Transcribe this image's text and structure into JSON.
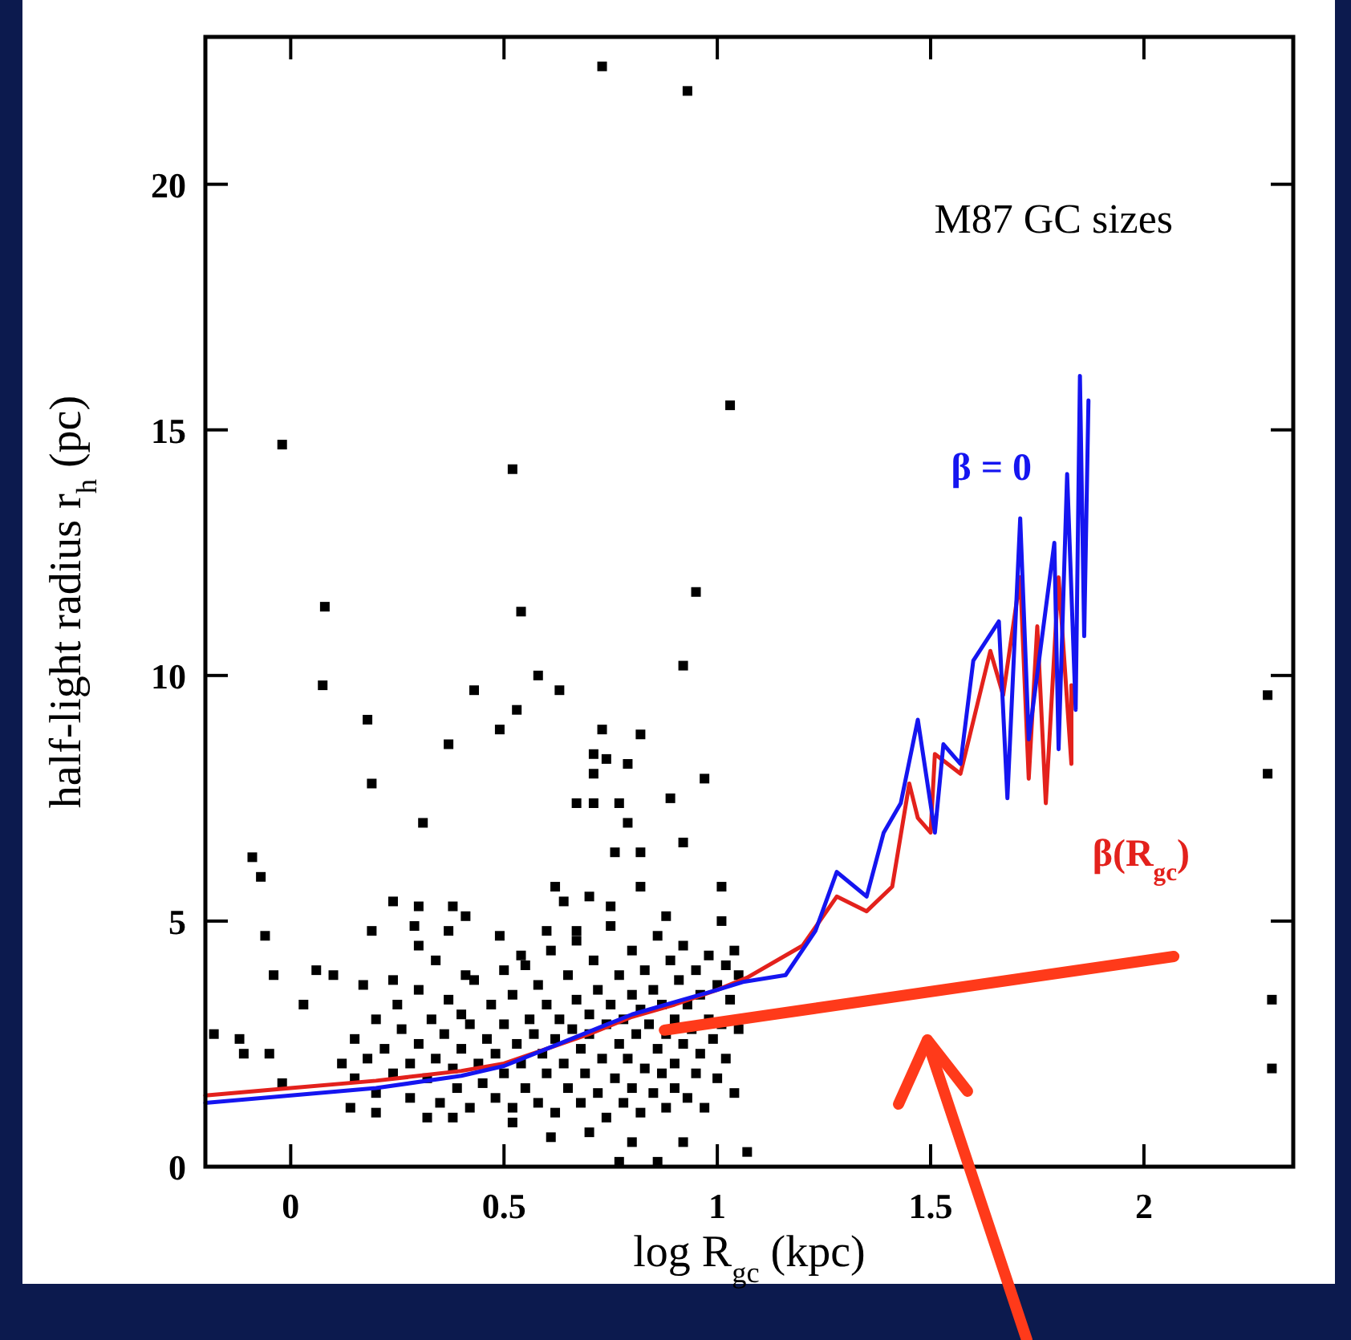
{
  "chart_data": {
    "type": "scatter",
    "title": "M87 GC sizes",
    "xlabel": "log R$_{gc}$ (kpc)",
    "ylabel": "half-light radius r$_{h}$ (pc)",
    "xlim": [
      -0.2,
      2.35
    ],
    "ylim": [
      0,
      23
    ],
    "xticks": [
      0,
      0.5,
      1,
      1.5,
      2
    ],
    "yticks": [
      0,
      5,
      10,
      15,
      20
    ],
    "grid": false,
    "marker": "square",
    "series": [
      {
        "color": "#000000",
        "x": [
          0.73,
          0.93,
          1.03,
          -0.02,
          0.52,
          0.08,
          0.54,
          0.95,
          2.29,
          2.29,
          2.3,
          2.3,
          0.075,
          0.18,
          0.19,
          0.37,
          0.31,
          0.43,
          0.49,
          0.53,
          0.58,
          0.63,
          0.92,
          0.73,
          0.82,
          0.71,
          0.74,
          0.79,
          0.71,
          0.97,
          0.67,
          0.71,
          0.77,
          0.89,
          0.79,
          0.76,
          0.82,
          0.92,
          -0.09,
          -0.07,
          -0.06,
          -0.04,
          0.06,
          0.03,
          -0.18,
          -0.12,
          -0.11,
          -0.05,
          -0.02,
          0.14,
          0.2,
          0.32,
          0.38,
          0.52,
          0.61,
          0.7,
          0.8,
          0.77,
          0.86,
          0.92,
          1.07,
          0.24,
          0.3,
          0.38,
          0.41,
          0.19,
          0.29,
          0.37,
          0.3,
          0.49,
          0.62,
          0.64,
          0.7,
          0.75,
          0.82,
          0.88,
          1.01,
          1.01,
          0.1,
          0.17,
          0.24,
          0.34,
          0.41,
          0.54,
          0.6,
          0.67,
          1.04,
          0.12,
          0.15,
          0.15,
          0.18,
          0.2,
          0.2,
          0.22,
          0.24,
          0.25,
          0.26,
          0.28,
          0.28,
          0.3,
          0.3,
          0.32,
          0.33,
          0.34,
          0.35,
          0.36,
          0.37,
          0.38,
          0.39,
          0.4,
          0.4,
          0.42,
          0.42,
          0.43,
          0.44,
          0.45,
          0.46,
          0.47,
          0.48,
          0.48,
          0.5,
          0.5,
          0.5,
          0.52,
          0.52,
          0.53,
          0.54,
          0.55,
          0.55,
          0.56,
          0.57,
          0.58,
          0.58,
          0.59,
          0.6,
          0.6,
          0.61,
          0.62,
          0.62,
          0.63,
          0.64,
          0.65,
          0.65,
          0.66,
          0.67,
          0.67,
          0.68,
          0.68,
          0.69,
          0.7,
          0.7,
          0.71,
          0.72,
          0.72,
          0.73,
          0.74,
          0.74,
          0.75,
          0.75,
          0.76,
          0.77,
          0.77,
          0.78,
          0.78,
          0.79,
          0.8,
          0.8,
          0.8,
          0.81,
          0.82,
          0.82,
          0.83,
          0.83,
          0.84,
          0.85,
          0.85,
          0.86,
          0.86,
          0.87,
          0.87,
          0.88,
          0.88,
          0.89,
          0.9,
          0.9,
          0.9,
          0.91,
          0.92,
          0.92,
          0.93,
          0.93,
          0.94,
          0.95,
          0.95,
          0.96,
          0.96,
          0.97,
          0.98,
          0.98,
          0.99,
          1.0,
          1.0,
          1.01,
          1.02,
          1.02,
          1.03,
          1.04,
          1.05,
          1.05
        ],
        "values": [
          22.4,
          21.9,
          15.5,
          14.7,
          14.2,
          11.4,
          11.3,
          11.7,
          9.6,
          8.0,
          3.4,
          2.0,
          9.8,
          9.1,
          7.8,
          8.6,
          7.0,
          9.7,
          8.9,
          9.3,
          10.0,
          9.7,
          10.2,
          8.9,
          8.8,
          8.4,
          8.3,
          8.2,
          8.0,
          7.9,
          7.4,
          7.4,
          7.4,
          7.5,
          7.0,
          6.4,
          6.4,
          6.6,
          6.3,
          5.9,
          4.7,
          3.9,
          4.0,
          3.3,
          2.7,
          2.6,
          2.3,
          2.3,
          1.7,
          1.2,
          1.1,
          1.0,
          1.0,
          0.9,
          0.6,
          0.7,
          0.5,
          0.1,
          0.1,
          0.5,
          0.3,
          5.4,
          5.3,
          5.3,
          5.1,
          4.8,
          4.9,
          4.8,
          4.5,
          4.7,
          5.7,
          5.4,
          5.5,
          5.3,
          5.7,
          5.1,
          5.7,
          5.0,
          3.9,
          3.7,
          3.8,
          4.2,
          3.9,
          4.3,
          4.8,
          4.8,
          4.4,
          2.1,
          1.8,
          2.6,
          2.2,
          3.0,
          1.5,
          2.4,
          1.9,
          3.3,
          2.8,
          2.1,
          1.4,
          3.6,
          2.5,
          1.8,
          3.0,
          2.2,
          1.3,
          2.7,
          3.4,
          2.0,
          1.6,
          3.1,
          2.4,
          1.2,
          2.9,
          3.8,
          2.1,
          1.7,
          2.6,
          3.3,
          1.4,
          2.3,
          4.0,
          2.9,
          1.9,
          1.2,
          3.5,
          2.5,
          2.1,
          4.1,
          1.6,
          3.0,
          2.7,
          1.3,
          3.7,
          2.3,
          1.9,
          3.3,
          4.4,
          2.6,
          1.1,
          3.0,
          2.1,
          3.9,
          1.6,
          2.8,
          4.6,
          3.4,
          1.3,
          2.4,
          1.9,
          3.1,
          2.7,
          4.2,
          1.5,
          3.6,
          2.2,
          2.9,
          1.0,
          3.3,
          4.9,
          1.8,
          2.5,
          3.9,
          1.3,
          3.0,
          2.2,
          4.4,
          3.5,
          1.6,
          2.7,
          1.1,
          3.2,
          2.0,
          4.0,
          2.9,
          1.5,
          3.6,
          2.4,
          4.7,
          1.9,
          3.3,
          2.7,
          1.2,
          4.2,
          3.0,
          2.1,
          1.6,
          3.8,
          2.5,
          4.5,
          1.4,
          3.3,
          2.8,
          1.9,
          4.0,
          3.5,
          2.3,
          1.2,
          3.0,
          4.3,
          2.6,
          1.8,
          3.7,
          2.9,
          4.1,
          2.2,
          3.4,
          1.5,
          2.8,
          3.9
        ]
      },
      {
        "type": "line",
        "marker": "none",
        "name": "β(R$_{gc}$)",
        "color": "#e3211c",
        "x": [
          -0.2,
          0,
          0.2,
          0.4,
          0.5,
          0.6,
          0.7,
          0.8,
          0.9,
          1.0,
          1.07,
          1.2,
          1.28,
          1.35,
          1.41,
          1.45,
          1.47,
          1.5,
          1.51,
          1.57,
          1.64,
          1.67,
          1.71,
          1.73,
          1.75,
          1.77,
          1.8,
          1.83,
          1.83
        ],
        "values": [
          1.45,
          1.6,
          1.75,
          1.95,
          2.1,
          2.4,
          2.7,
          3.05,
          3.3,
          3.6,
          3.85,
          4.5,
          5.5,
          5.2,
          5.7,
          7.8,
          7.1,
          6.8,
          8.4,
          8.0,
          10.5,
          9.6,
          12.0,
          7.9,
          11.0,
          7.4,
          12.0,
          8.2,
          9.8
        ]
      },
      {
        "type": "line",
        "marker": "none",
        "name": "β = 0",
        "color": "#1515f0",
        "x": [
          -0.2,
          0,
          0.2,
          0.4,
          0.5,
          0.6,
          0.7,
          0.8,
          0.9,
          1.0,
          1.06,
          1.16,
          1.23,
          1.28,
          1.35,
          1.39,
          1.43,
          1.47,
          1.51,
          1.53,
          1.57,
          1.6,
          1.66,
          1.68,
          1.71,
          1.73,
          1.79,
          1.8,
          1.82,
          1.84,
          1.85,
          1.86,
          1.87
        ],
        "values": [
          1.3,
          1.45,
          1.6,
          1.85,
          2.05,
          2.4,
          2.75,
          3.1,
          3.35,
          3.6,
          3.76,
          3.9,
          4.8,
          6.0,
          5.5,
          6.8,
          7.4,
          9.1,
          6.8,
          8.6,
          8.2,
          10.3,
          11.1,
          7.5,
          13.2,
          8.7,
          12.7,
          8.5,
          14.1,
          9.3,
          16.1,
          10.8,
          15.6
        ]
      },
      {
        "type": "line",
        "marker": "none",
        "color": "#ff3a1a",
        "x": [
          0.876,
          2.07
        ],
        "values": [
          2.78,
          4.28
        ]
      }
    ]
  }
}
